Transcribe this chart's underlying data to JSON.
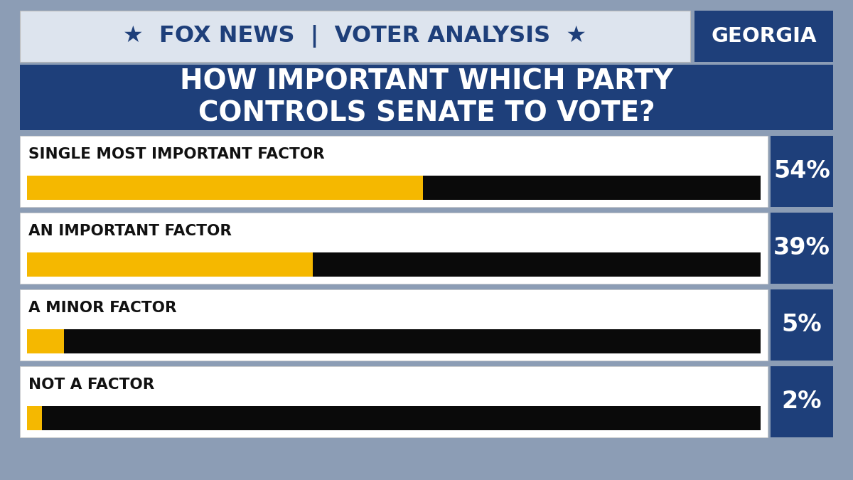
{
  "title_line1": "HOW IMPORTANT WHICH PARTY",
  "title_line2": "CONTROLS SENATE TO VOTE?",
  "geo_label": "GEORGIA",
  "background_color": "#8c9db5",
  "header_bg_left": "#dde3ec",
  "header_bg_right": "#e8ecf2",
  "title_bg": "#1e3f7a",
  "row_bg": "#f2f2f2",
  "row_bg2": "#e8e8e8",
  "categories": [
    "SINGLE MOST IMPORTANT FACTOR",
    "AN IMPORTANT FACTOR",
    "A MINOR FACTOR",
    "NOT A FACTOR"
  ],
  "values": [
    54,
    39,
    5,
    2
  ],
  "gold_color": "#f5b800",
  "black_bar_color": "#0a0a0a",
  "label_color": "#111111",
  "pct_box_color": "#1e3f7a",
  "pct_text_color": "#ffffff",
  "label_fontsize": 15.5,
  "pct_fontsize": 24,
  "title_fontsize": 28,
  "header_fontsize": 23,
  "geo_fontsize": 21
}
